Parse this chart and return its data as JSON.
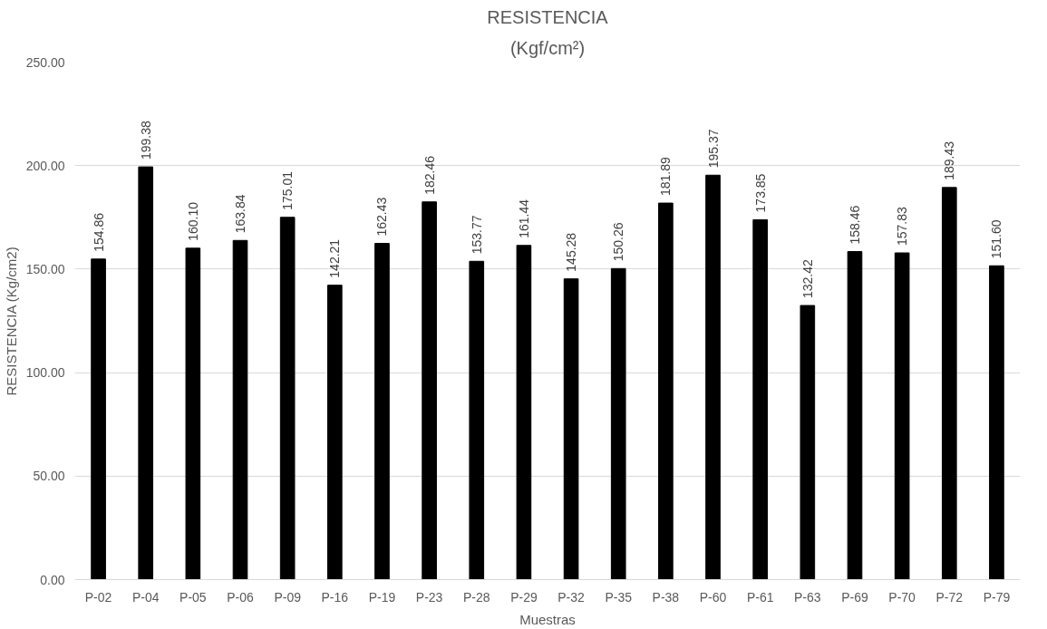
{
  "chart_data": {
    "type": "bar",
    "title": "RESISTENCIA",
    "subtitle": "(Kgf/cm²)",
    "xlabel": "Muestras",
    "ylabel": "RESISTENCIA (Kg/cm2)",
    "categories": [
      "P-02",
      "P-04",
      "P-05",
      "P-06",
      "P-09",
      "P-16",
      "P-19",
      "P-23",
      "P-28",
      "P-29",
      "P-32",
      "P-35",
      "P-38",
      "P-60",
      "P-61",
      "P-63",
      "P-69",
      "P-70",
      "P-72",
      "P-79"
    ],
    "values": [
      154.86,
      199.38,
      160.1,
      163.84,
      175.01,
      142.21,
      162.43,
      182.46,
      153.77,
      161.44,
      145.28,
      150.26,
      181.89,
      195.37,
      173.85,
      132.42,
      158.46,
      157.83,
      189.43,
      151.6
    ],
    "value_labels": [
      "154.86",
      "199.38",
      "160.10",
      "163.84",
      "175.01",
      "142.21",
      "162.43",
      "182.46",
      "153.77",
      "161.44",
      "145.28",
      "150.26",
      "181.89",
      "195.37",
      "173.85",
      "132.42",
      "158.46",
      "157.83",
      "189.43",
      "151.60"
    ],
    "color": "#000000",
    "ylim": [
      0,
      250
    ],
    "yticks": [
      {
        "value": 0,
        "label": "0.00"
      },
      {
        "value": 50,
        "label": "50.00"
      },
      {
        "value": 100,
        "label": "100.00"
      },
      {
        "value": 150,
        "label": "150.00"
      },
      {
        "value": 200,
        "label": "200.00"
      },
      {
        "value": 250,
        "label": "250.00"
      }
    ],
    "grid": "y"
  }
}
